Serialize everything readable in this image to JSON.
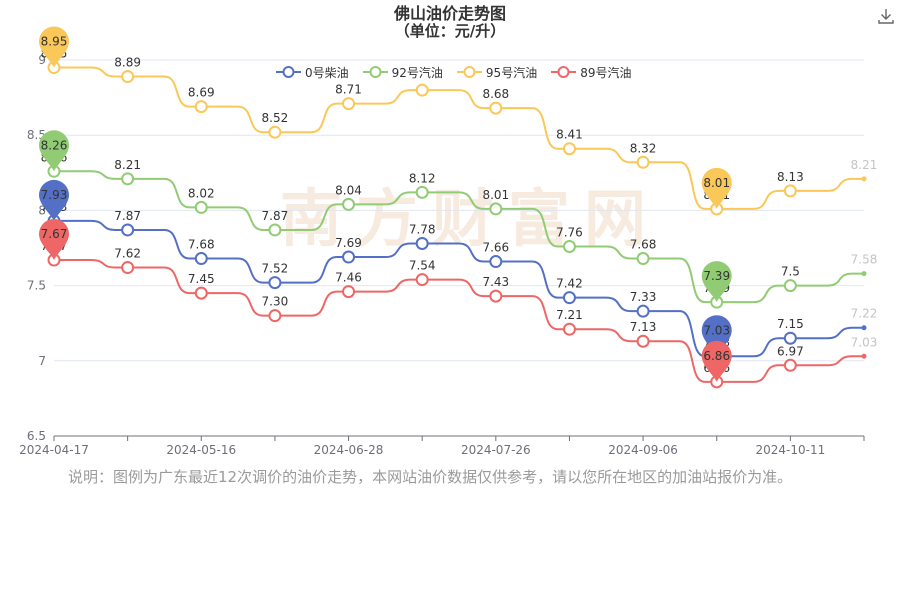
{
  "chart_data": {
    "type": "line",
    "title": "佛山油价走势图",
    "subtitle": "（单位：元/升）",
    "categories": [
      "2024-04-17",
      "",
      "2024-05-16",
      "",
      "2024-06-28",
      "",
      "2024-07-26",
      "",
      "2024-09-06",
      "",
      "2024-10-11",
      ""
    ],
    "x_tick_labels": [
      "2024-04-17",
      "2024-05-16",
      "2024-06-28",
      "2024-07-26",
      "2024-09-06",
      "2024-10-11"
    ],
    "y_tick_labels": [
      "6.5",
      "7",
      "7.5",
      "8",
      "8.5",
      "9"
    ],
    "ylim": [
      6.5,
      9
    ],
    "grid": true,
    "legend_position": "top",
    "series": [
      {
        "name": "0号柴油",
        "color": "#5470c6",
        "values": [
          7.93,
          7.87,
          7.68,
          7.52,
          7.69,
          7.78,
          7.66,
          7.42,
          7.33,
          7.03,
          7.15,
          7.22
        ],
        "labels": [
          "7.93",
          "7.87",
          "7.68",
          "7.52",
          "7.69",
          "7.78",
          "7.66",
          "7.42",
          "7.33",
          "7.03",
          "7.15",
          "7.22"
        ],
        "max_index": 0,
        "min_index": 9
      },
      {
        "name": "92号汽油",
        "color": "#91cc75",
        "values": [
          8.26,
          8.21,
          8.02,
          7.87,
          8.04,
          8.12,
          8.01,
          7.76,
          7.68,
          7.39,
          7.5,
          7.58
        ],
        "labels": [
          "8.26",
          "8.21",
          "8.02",
          "7.87",
          "8.04",
          "8.12",
          "8.01",
          "7.76",
          "7.68",
          "7.39",
          "7.5",
          "7.58"
        ],
        "max_index": 0,
        "min_index": 9
      },
      {
        "name": "95号汽油",
        "color": "#fac858",
        "values": [
          8.95,
          8.89,
          8.69,
          8.52,
          8.71,
          8.8,
          8.68,
          8.41,
          8.32,
          8.01,
          8.13,
          8.21
        ],
        "labels": [
          "8.95",
          "8.89",
          "8.69",
          "8.52",
          "8.71",
          "",
          "8.68",
          "8.41",
          "8.32",
          "8.01",
          "8.13",
          "8.21"
        ],
        "max_index": 0,
        "min_index": 9
      },
      {
        "name": "89号汽油",
        "color": "#ee6666",
        "values": [
          7.67,
          7.62,
          7.45,
          7.3,
          7.46,
          7.54,
          7.43,
          7.21,
          7.13,
          6.86,
          6.97,
          7.03
        ],
        "labels": [
          "7.67",
          "7.62",
          "7.45",
          "7.30",
          "7.46",
          "7.54",
          "7.43",
          "7.21",
          "7.13",
          "6.86",
          "6.97",
          "7.03"
        ],
        "max_index": 0,
        "min_index": 9
      }
    ]
  },
  "watermark": "南方财富网",
  "footnote": "说明：图例为广东最近12次调价的油价走势，本网站油价数据仅供参考，请以您所在地区的加油站报价为准。",
  "icons": {
    "download": "download-icon"
  }
}
